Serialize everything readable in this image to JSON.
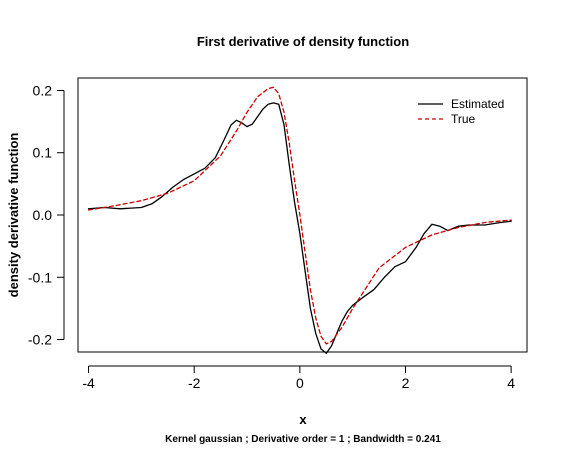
{
  "chart_data": {
    "type": "line",
    "title": "First derivative of density function",
    "xlabel": "x",
    "ylabel": "density derivative function",
    "subtitle": "Kernel gaussian ; Derivative order =  1 ; Bandwidth =  0.241",
    "xlim": [
      -4.2,
      4.3
    ],
    "ylim": [
      -0.22,
      0.22
    ],
    "xticks": [
      -4,
      -2,
      0,
      2,
      4
    ],
    "xtick_labels": [
      "-4",
      "-2",
      "0",
      "2",
      "4"
    ],
    "yticks": [
      -0.2,
      -0.1,
      0.0,
      0.1,
      0.2
    ],
    "ytick_labels": [
      "-0.2",
      "-0.1",
      "0.0",
      "0.1",
      "0.2"
    ],
    "grid": false,
    "legend_position": "top-right",
    "series": [
      {
        "name": "Estimated",
        "color": "#000000",
        "dash": "solid",
        "x": [
          -4.0,
          -3.7,
          -3.4,
          -3.0,
          -2.8,
          -2.6,
          -2.4,
          -2.2,
          -2.0,
          -1.8,
          -1.6,
          -1.45,
          -1.3,
          -1.2,
          -1.1,
          -1.0,
          -0.9,
          -0.8,
          -0.7,
          -0.6,
          -0.5,
          -0.4,
          -0.3,
          -0.2,
          -0.1,
          0.0,
          0.1,
          0.2,
          0.3,
          0.4,
          0.5,
          0.6,
          0.7,
          0.8,
          0.9,
          1.0,
          1.2,
          1.4,
          1.6,
          1.8,
          2.0,
          2.2,
          2.35,
          2.5,
          2.65,
          2.8,
          3.0,
          3.2,
          3.5,
          3.8,
          4.0
        ],
        "y": [
          0.01,
          0.012,
          0.01,
          0.012,
          0.018,
          0.03,
          0.045,
          0.057,
          0.066,
          0.075,
          0.092,
          0.118,
          0.145,
          0.152,
          0.148,
          0.142,
          0.146,
          0.158,
          0.17,
          0.178,
          0.18,
          0.178,
          0.145,
          0.08,
          0.02,
          -0.03,
          -0.09,
          -0.15,
          -0.19,
          -0.215,
          -0.222,
          -0.21,
          -0.19,
          -0.17,
          -0.155,
          -0.145,
          -0.132,
          -0.12,
          -0.1,
          -0.083,
          -0.075,
          -0.052,
          -0.03,
          -0.015,
          -0.018,
          -0.025,
          -0.018,
          -0.016,
          -0.016,
          -0.012,
          -0.01
        ]
      },
      {
        "name": "True",
        "color": "#cc0000",
        "dash": "dashed",
        "x": [
          -4.0,
          -3.5,
          -3.0,
          -2.5,
          -2.0,
          -1.5,
          -1.2,
          -1.0,
          -0.8,
          -0.6,
          -0.5,
          -0.4,
          -0.3,
          -0.2,
          -0.1,
          0.0,
          0.1,
          0.2,
          0.3,
          0.4,
          0.5,
          0.6,
          0.8,
          1.0,
          1.5,
          2.0,
          2.5,
          3.0,
          3.5,
          4.0
        ],
        "y": [
          0.008,
          0.015,
          0.023,
          0.035,
          0.055,
          0.095,
          0.135,
          0.165,
          0.19,
          0.203,
          0.205,
          0.195,
          0.165,
          0.115,
          0.055,
          0.0,
          -0.06,
          -0.12,
          -0.165,
          -0.195,
          -0.207,
          -0.203,
          -0.18,
          -0.15,
          -0.085,
          -0.052,
          -0.032,
          -0.02,
          -0.012,
          -0.008
        ]
      }
    ]
  }
}
